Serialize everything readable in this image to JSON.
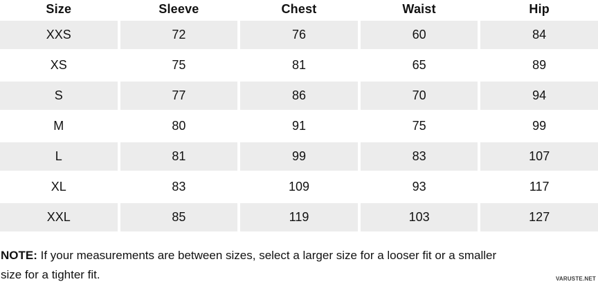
{
  "chart_data": {
    "type": "table",
    "columns": [
      "Size",
      "Sleeve",
      "Chest",
      "Waist",
      "Hip"
    ],
    "rows": [
      [
        "XXS",
        "72",
        "76",
        "60",
        "84"
      ],
      [
        "XS",
        "75",
        "81",
        "65",
        "89"
      ],
      [
        "S",
        "77",
        "86",
        "70",
        "94"
      ],
      [
        "M",
        "80",
        "91",
        "75",
        "99"
      ],
      [
        "L",
        "81",
        "99",
        "83",
        "107"
      ],
      [
        "XL",
        "83",
        "109",
        "93",
        "117"
      ],
      [
        "XXL",
        "85",
        "119",
        "103",
        "127"
      ]
    ],
    "striped_rows": [
      0,
      2,
      4,
      6
    ],
    "title": "",
    "legend": "none",
    "grid": "off"
  },
  "note": {
    "label": "NOTE:",
    "text": " If your measurements are between sizes, select a larger size for a looser fit or a smaller size for a tighter fit."
  },
  "watermark": "VARUSTE.NET",
  "colors": {
    "background": "#ffffff",
    "row_stripe": "#ececec",
    "text": "#111111",
    "watermark": "#3d3d3d"
  }
}
